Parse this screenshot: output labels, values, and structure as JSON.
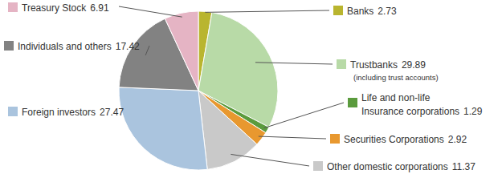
{
  "chart_data": {
    "type": "pie",
    "categories": [
      "Banks",
      "Trustbanks",
      "Life and non-life Insurance corporations",
      "Securities Corporations",
      "Other domestic corporations",
      "Foreign investors",
      "Individuals and others",
      "Treasury Stock"
    ],
    "values": [
      2.73,
      29.89,
      1.29,
      2.92,
      11.37,
      27.47,
      17.42,
      6.91
    ],
    "colors": [
      "#b9b52f",
      "#b8daa7",
      "#5b9b3d",
      "#e8982f",
      "#c9c9c9",
      "#aac4de",
      "#828282",
      "#e5b4c4"
    ],
    "data_labels": true,
    "annotations": [
      {
        "category": "Trustbanks",
        "text": "(including trust accounts)"
      }
    ]
  }
}
